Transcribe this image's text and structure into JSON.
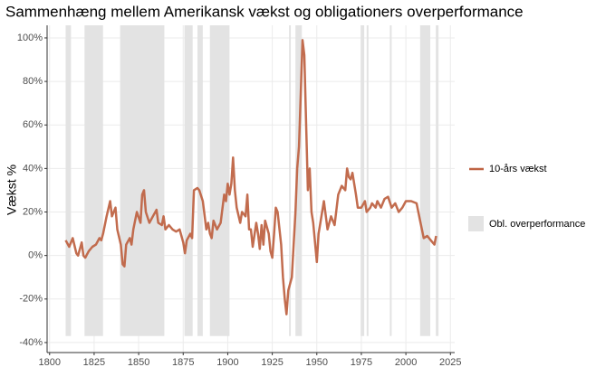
{
  "chart_data": {
    "type": "line",
    "title": "Sammenhæng mellem Amerikansk vækst og obligationers overperformance",
    "y_label": "Vækst %",
    "x": [
      1809,
      1811,
      1813,
      1815,
      1816,
      1818,
      1819,
      1820,
      1822,
      1824,
      1826,
      1828,
      1829,
      1830,
      1832,
      1834,
      1835,
      1837,
      1838,
      1840,
      1841,
      1842,
      1843,
      1845,
      1846,
      1847,
      1849,
      1851,
      1852,
      1853,
      1854,
      1856,
      1858,
      1860,
      1861,
      1863,
      1864,
      1865,
      1867,
      1869,
      1871,
      1873,
      1875,
      1876,
      1877,
      1879,
      1880,
      1881,
      1883,
      1884,
      1886,
      1888,
      1889,
      1890,
      1891,
      1892,
      1894,
      1896,
      1898,
      1899,
      1900,
      1901,
      1902,
      1903,
      1904,
      1905,
      1907,
      1908,
      1910,
      1911,
      1912,
      1913,
      1914,
      1916,
      1917,
      1918,
      1919,
      1920,
      1921,
      1923,
      1924,
      1925,
      1926,
      1927,
      1928,
      1930,
      1931,
      1932,
      1933,
      1934,
      1936,
      1937,
      1938,
      1939,
      1940,
      1941,
      1942,
      1943,
      1944,
      1945,
      1946,
      1947,
      1948,
      1950,
      1951,
      1952,
      1954,
      1956,
      1958,
      1960,
      1962,
      1964,
      1966,
      1967,
      1968,
      1969,
      1970,
      1972,
      1973,
      1975,
      1977,
      1978,
      1980,
      1981,
      1983,
      1984,
      1986,
      1988,
      1990,
      1992,
      1994,
      1996,
      1998,
      2000,
      2003,
      2006,
      2008,
      2010,
      2012,
      2014,
      2016,
      2017
    ],
    "series": [
      {
        "name": "10-års vækst",
        "color": "#bf6444",
        "values": [
          7,
          4,
          8,
          1,
          0,
          6,
          0,
          -1,
          2,
          4,
          5,
          8,
          7,
          10,
          18,
          25,
          18,
          22,
          12,
          5,
          -4,
          -5,
          5,
          8,
          5,
          12,
          20,
          15,
          28,
          30,
          20,
          15,
          18,
          21,
          15,
          14,
          18,
          12,
          14,
          12,
          11,
          12,
          6,
          1,
          7,
          10,
          8,
          30,
          31,
          30,
          25,
          12,
          15,
          10,
          8,
          16,
          12,
          15,
          28,
          25,
          33,
          28,
          33,
          45,
          30,
          22,
          15,
          20,
          18,
          28,
          12,
          12,
          4,
          15,
          10,
          3,
          14,
          5,
          16,
          10,
          2,
          -1,
          10,
          22,
          20,
          5,
          -10,
          -20,
          -27,
          -16,
          -10,
          5,
          20,
          40,
          50,
          75,
          99,
          92,
          60,
          30,
          40,
          20,
          15,
          -3,
          10,
          15,
          25,
          12,
          18,
          14,
          28,
          32,
          30,
          40,
          36,
          35,
          38,
          28,
          22,
          22,
          25,
          20,
          22,
          24,
          22,
          25,
          22,
          26,
          27,
          22,
          24,
          20,
          22,
          25,
          25,
          24,
          16,
          8,
          9,
          7,
          5,
          9
        ]
      }
    ],
    "band_name": "Obl. overperformance",
    "band_color": "#e3e3e3",
    "band_bottom": -37,
    "bands": [
      [
        1809,
        1812
      ],
      [
        1819.6,
        1830
      ],
      [
        1839.6,
        1864.4
      ],
      [
        1875.7,
        1880.3
      ],
      [
        1883,
        1886
      ],
      [
        1890,
        1901
      ],
      [
        1934.4,
        1935.4
      ],
      [
        1938,
        1941.6
      ],
      [
        1974.6,
        1976.6
      ],
      [
        1978,
        1979
      ],
      [
        1991,
        1992
      ],
      [
        2008,
        2013.7
      ],
      [
        2016.8,
        2018.3
      ]
    ],
    "xlim": [
      1798.6,
      2027.4
    ],
    "ylim": [
      -44.6,
      105.8
    ],
    "xticks": [
      1800,
      1825,
      1850,
      1875,
      1900,
      1925,
      1950,
      1975,
      2000,
      2025
    ],
    "yticks": [
      {
        "value": -40,
        "label": "-40%"
      },
      {
        "value": -20,
        "label": "-20%"
      },
      {
        "value": 0,
        "label": "0%"
      },
      {
        "value": 20,
        "label": "20%"
      },
      {
        "value": 40,
        "label": "40%"
      },
      {
        "value": 60,
        "label": "60%"
      },
      {
        "value": 80,
        "label": "80%"
      },
      {
        "value": 100,
        "label": "100%"
      }
    ],
    "grid": true
  }
}
